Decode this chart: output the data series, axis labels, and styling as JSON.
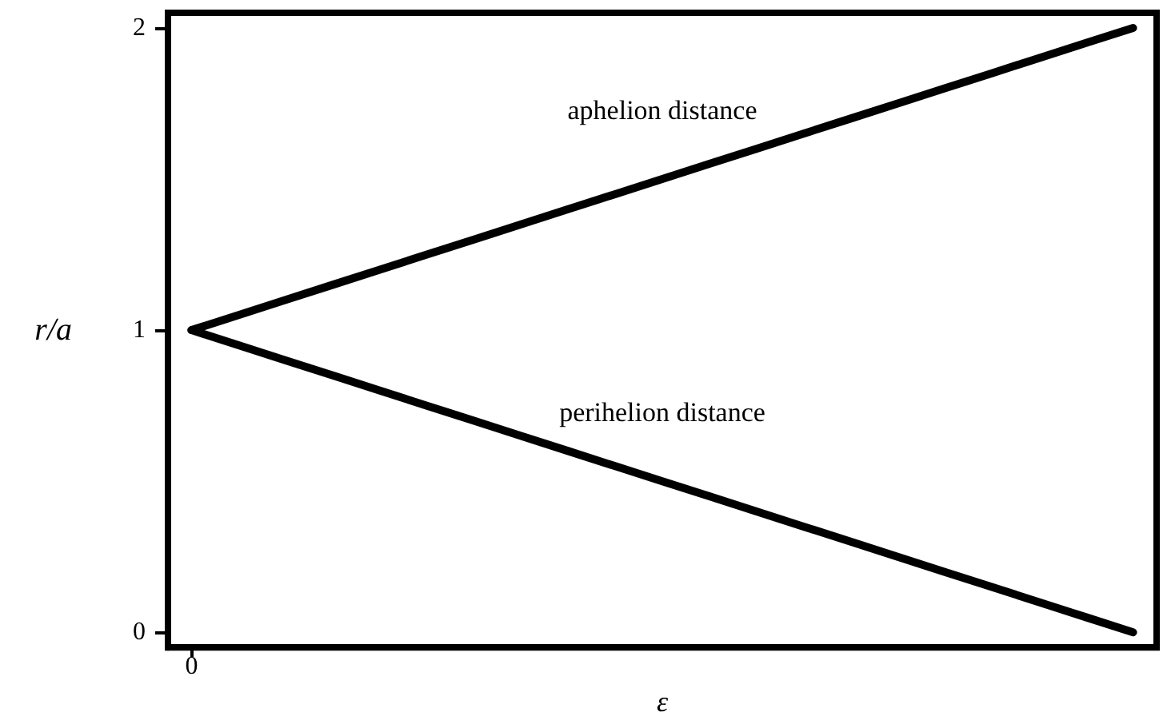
{
  "chart_data": {
    "type": "line",
    "xlabel": "ε",
    "ylabel": "r/a",
    "categories": [
      "0",
      null,
      null,
      null,
      null,
      null,
      null,
      null,
      null,
      null,
      null,
      null,
      null,
      null,
      null,
      null,
      null,
      null,
      null,
      null,
      null
    ],
    "series": [
      {
        "name": "aphelion distance",
        "color": "#000000",
        "values": [
          1,
          1.05,
          1.1,
          1.15,
          1.2,
          1.25,
          1.3,
          1.35,
          1.4,
          1.45,
          1.5,
          1.55,
          1.6,
          1.65,
          1.7,
          1.75,
          1.8,
          1.85,
          1.9,
          1.95,
          2
        ]
      },
      {
        "name": "perihelion distance",
        "color": "#000000",
        "values": [
          1,
          0.95,
          0.9,
          0.85,
          0.8,
          0.75,
          0.7,
          0.65,
          0.6,
          0.55,
          0.5,
          0.45,
          0.4,
          0.35,
          0.3,
          0.25,
          0.2,
          0.15,
          0.1,
          0.05,
          0
        ]
      }
    ],
    "ylim": [
      -0.05,
      2.05
    ],
    "yticks": [
      0,
      1,
      2
    ],
    "grid": false,
    "legend": false,
    "marker": "none",
    "line_style": "solid"
  }
}
